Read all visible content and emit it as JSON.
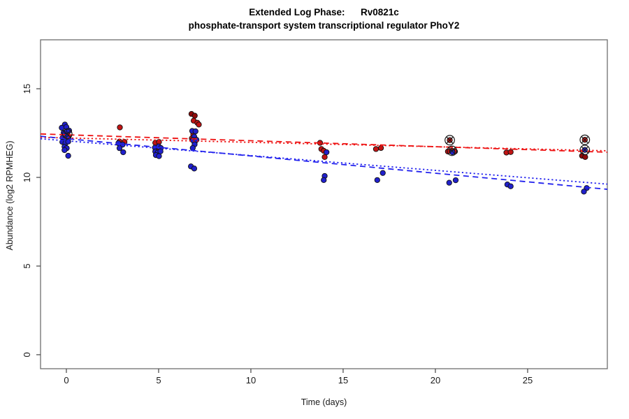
{
  "figure": {
    "title": "Extended Log Phase:      Rv0821c",
    "subtitle": "phosphate-transport system transcriptional regulator PhoY2"
  },
  "chart_data": {
    "type": "scatter",
    "title": "Extended Log Phase:      Rv0821c",
    "subtitle": "phosphate-transport system transcriptional regulator PhoY2",
    "xlabel": "Time  (days)",
    "ylabel": "Abundance  (log2 RPMHEG)",
    "x_ticks": [
      0,
      5,
      10,
      15,
      20,
      25
    ],
    "y_ticks": [
      0,
      5,
      10,
      15
    ],
    "x_domain": [
      -1.4,
      29.32
    ],
    "y_domain": [
      -0.79,
      17.76
    ],
    "grid": false,
    "legend": false,
    "point_flags_key": {
      "c": "circled-cross marker",
      "d": "dark shade"
    },
    "colors": {
      "red_point": "#c21414",
      "red_dark": "#8e0b0b",
      "blue_point": "#2020cc",
      "blue_dark": "#00008b",
      "red_line": "#ee1111",
      "blue_line": "#2222ee",
      "marker": "#1a1a1a",
      "box": "#6e6e6e"
    },
    "series": [
      {
        "name": "red",
        "points": [
          [
            0.05,
            12.45,
            "c"
          ],
          [
            0.12,
            12.28
          ],
          [
            2.9,
            12.82
          ],
          [
            2.88,
            12.02
          ],
          [
            3.15,
            12.0
          ],
          [
            4.82,
            11.95
          ],
          [
            5.02,
            12.0
          ],
          [
            4.9,
            11.6
          ],
          [
            6.78,
            13.58,
            "d"
          ],
          [
            6.96,
            13.48,
            "d"
          ],
          [
            6.9,
            13.2
          ],
          [
            7.1,
            13.08
          ],
          [
            7.18,
            12.98
          ],
          [
            6.88,
            12.42
          ],
          [
            6.8,
            12.2
          ],
          [
            6.95,
            11.95
          ],
          [
            13.75,
            11.95
          ],
          [
            13.82,
            11.6
          ],
          [
            13.95,
            11.5
          ],
          [
            14.0,
            11.15
          ],
          [
            16.78,
            11.6
          ],
          [
            17.05,
            11.66
          ],
          [
            20.78,
            12.1,
            "c"
          ],
          [
            20.68,
            11.46
          ],
          [
            21.06,
            11.46
          ],
          [
            20.9,
            11.5,
            "c"
          ],
          [
            23.85,
            11.4
          ],
          [
            24.08,
            11.43
          ],
          [
            28.1,
            12.12,
            "c"
          ],
          [
            27.95,
            11.22,
            "d"
          ],
          [
            28.12,
            11.15,
            "d"
          ]
        ]
      },
      {
        "name": "blue",
        "points": [
          [
            -0.08,
            12.98
          ],
          [
            -0.25,
            12.8
          ],
          [
            0.0,
            12.84
          ],
          [
            -0.15,
            12.52
          ],
          [
            0.02,
            12.6
          ],
          [
            0.15,
            12.64
          ],
          [
            -0.2,
            12.24
          ],
          [
            -0.02,
            12.32
          ],
          [
            0.1,
            12.2
          ],
          [
            -0.1,
            12.12
          ],
          [
            -0.22,
            12.0
          ],
          [
            -0.05,
            11.93
          ],
          [
            0.1,
            12.02
          ],
          [
            -0.1,
            11.73
          ],
          [
            0.02,
            11.65
          ],
          [
            -0.1,
            11.54
          ],
          [
            0.1,
            11.22
          ],
          [
            2.82,
            11.93
          ],
          [
            3.05,
            11.85
          ],
          [
            2.88,
            11.65
          ],
          [
            3.08,
            11.42
          ],
          [
            4.8,
            11.68
          ],
          [
            5.0,
            11.75
          ],
          [
            5.12,
            11.66
          ],
          [
            4.82,
            11.46
          ],
          [
            4.95,
            11.4
          ],
          [
            5.1,
            11.47
          ],
          [
            4.85,
            11.26
          ],
          [
            5.02,
            11.2
          ],
          [
            6.82,
            12.62
          ],
          [
            7.0,
            12.6
          ],
          [
            6.93,
            12.3
          ],
          [
            6.85,
            12.1
          ],
          [
            7.05,
            12.12
          ],
          [
            6.95,
            11.86
          ],
          [
            6.85,
            11.66
          ],
          [
            6.75,
            10.62
          ],
          [
            6.93,
            10.5
          ],
          [
            14.1,
            11.42
          ],
          [
            14.0,
            10.08
          ],
          [
            13.95,
            9.85
          ],
          [
            17.15,
            10.25
          ],
          [
            16.85,
            9.85
          ],
          [
            20.92,
            11.42
          ],
          [
            20.75,
            9.7
          ],
          [
            21.1,
            9.84
          ],
          [
            23.9,
            9.6
          ],
          [
            24.08,
            9.5
          ],
          [
            28.1,
            11.55,
            "c"
          ],
          [
            28.2,
            9.4
          ],
          [
            28.05,
            9.2
          ]
        ]
      }
    ],
    "trend_lines": [
      {
        "name": "red-dashed",
        "series": "red",
        "style": "dashed",
        "x1": -1.4,
        "y1": 12.45,
        "x2": 29.32,
        "y2": 11.42
      },
      {
        "name": "red-dotted",
        "series": "red",
        "style": "dotted",
        "x1": -1.4,
        "y1": 12.26,
        "x2": 29.32,
        "y2": 11.5
      },
      {
        "name": "blue-dashed",
        "series": "blue",
        "style": "dashed",
        "x1": -1.4,
        "y1": 12.32,
        "x2": 29.32,
        "y2": 9.33
      },
      {
        "name": "blue-dotted",
        "series": "blue",
        "style": "dotted",
        "x1": -1.4,
        "y1": 12.18,
        "x2": 29.32,
        "y2": 9.62
      }
    ]
  }
}
